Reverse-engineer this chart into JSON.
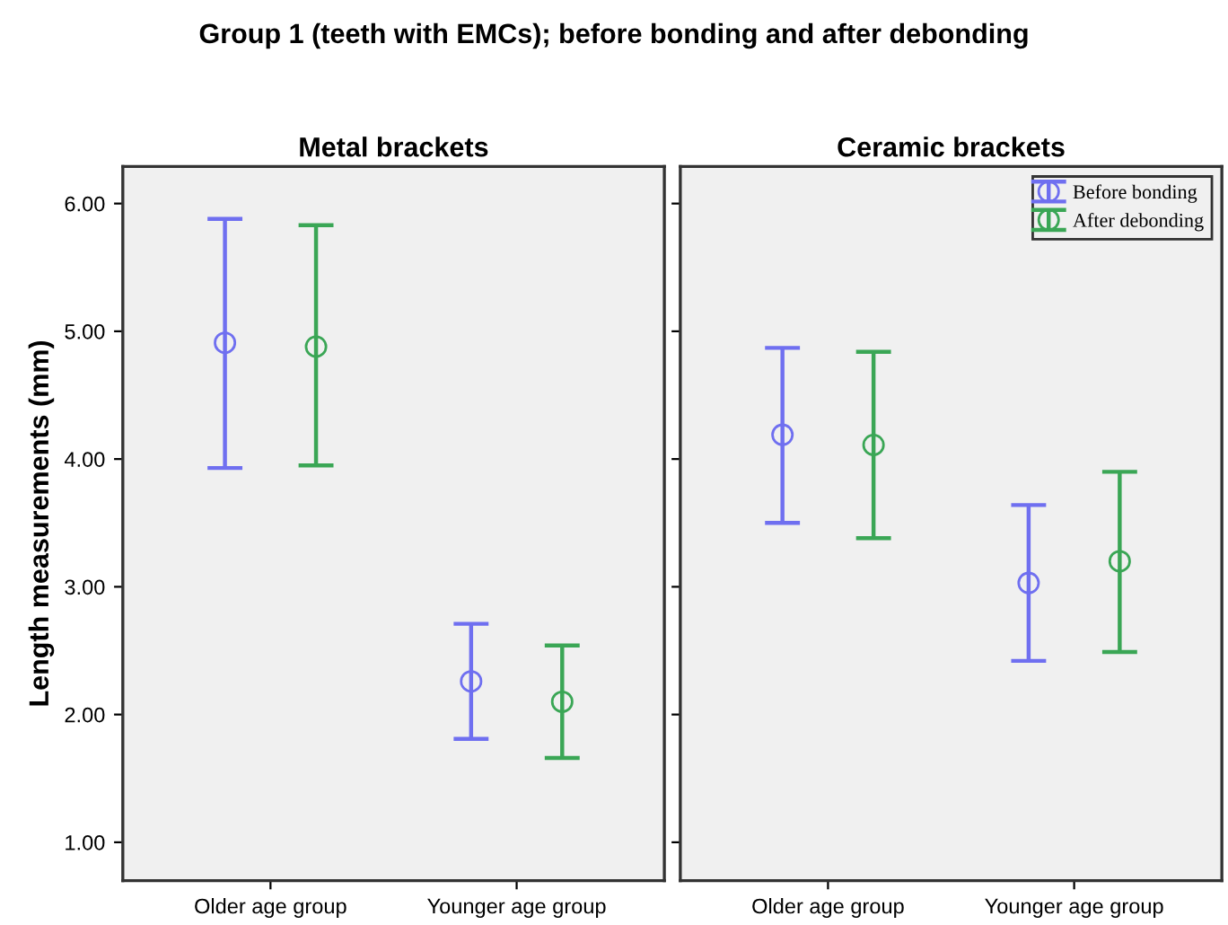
{
  "chart_data": [
    {
      "type": "scatter",
      "title": "Metal brackets",
      "ylabel": "Length measurements (mm)",
      "annotations": [
        "Group 1 (teeth with EMCs); before bonding and after debonding"
      ],
      "categories": [
        "Older age group",
        "Younger age group"
      ],
      "ylim": [
        0.7,
        6.29
      ],
      "yticks": [
        {
          "value": 1,
          "label": "1.00"
        },
        {
          "value": 2,
          "label": "2.00"
        },
        {
          "value": 3,
          "label": "3.00"
        },
        {
          "value": 4,
          "label": "4.00"
        },
        {
          "value": 5,
          "label": "5.00"
        },
        {
          "value": 6,
          "label": "6.00"
        }
      ],
      "marker": "circle",
      "grid": false,
      "legend": false,
      "series": [
        {
          "color": "#6f6ff0",
          "values": [
            4.91,
            2.26
          ],
          "errors": [
            [
              3.93,
              5.88
            ],
            [
              1.81,
              2.71
            ]
          ]
        },
        {
          "color": "#3aa655",
          "values": [
            4.88,
            2.1
          ],
          "errors": [
            [
              3.95,
              5.83
            ],
            [
              1.66,
              2.54
            ]
          ]
        }
      ]
    },
    {
      "type": "scatter",
      "title": "Ceramic brackets",
      "categories": [
        "Older age group",
        "Younger age group"
      ],
      "ylim": [
        0.7,
        6.29
      ],
      "yticks": [
        {
          "value": 1,
          "label": null
        },
        {
          "value": 2,
          "label": null
        },
        {
          "value": 3,
          "label": null
        },
        {
          "value": 4,
          "label": null
        },
        {
          "value": 5,
          "label": null
        },
        {
          "value": 6,
          "label": null
        }
      ],
      "tick_labels": "x",
      "marker": "circle",
      "grid": false,
      "legend": "top right",
      "series": [
        {
          "name": "Before bonding",
          "color": "#6f6ff0",
          "values": [
            4.19,
            3.03
          ],
          "errors": [
            [
              3.5,
              4.87
            ],
            [
              2.42,
              3.64
            ]
          ]
        },
        {
          "name": "After debonding",
          "color": "#3aa655",
          "values": [
            4.11,
            3.2
          ],
          "errors": [
            [
              3.38,
              4.84
            ],
            [
              2.49,
              3.9
            ]
          ]
        }
      ]
    }
  ]
}
